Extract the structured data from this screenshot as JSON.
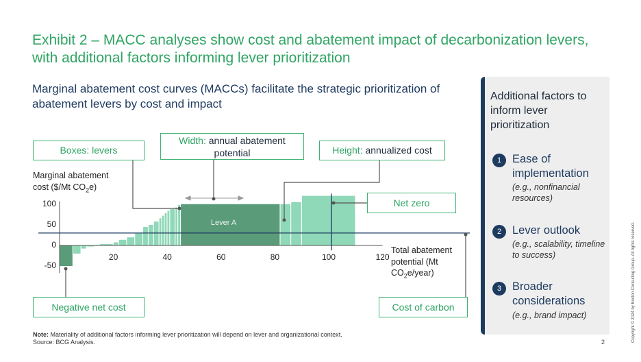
{
  "title": "Exhibit 2 – MACC analyses show cost and abatement impact of decarbonization levers, with additional factors informing lever prioritization",
  "subtitle": "Marginal abatement cost curves (MACCs)  facilitate the strategic prioritization of abatement levers by cost and impact",
  "callouts": {
    "boxes": "Boxes: levers",
    "width_key": "Width:",
    "width_rest": " annual abatement potential",
    "height_key": "Height:",
    "height_rest": " annualized cost",
    "net_zero": "Net zero",
    "negative_net_cost": "Negative net cost",
    "cost_of_carbon": "Cost of carbon"
  },
  "chart_data": {
    "type": "bar",
    "ylabel_line1": "Marginal abatement",
    "ylabel_line2_prefix": "cost ($/Mt CO",
    "ylabel_line2_sub": "2",
    "ylabel_line2_suffix": "e)",
    "xlabel_line1": "Total abatement",
    "xlabel_line2": "potential (Mt",
    "xlabel_line3_prefix": "CO",
    "xlabel_line3_sub": "2",
    "xlabel_line3_suffix": "e/year)",
    "x_ticks": [
      "20",
      "40",
      "60",
      "80",
      "100",
      "120"
    ],
    "y_ticks": [
      "100",
      "50",
      "0",
      "-50"
    ],
    "xlim": [
      0,
      120
    ],
    "ylim": [
      -50,
      100
    ],
    "cost_of_carbon": 30,
    "net_zero_x": 101,
    "highlight_label": "Lever A",
    "levers": [
      {
        "start": 0,
        "width": 5,
        "cost": -50
      },
      {
        "start": 5,
        "width": 3,
        "cost": -20
      },
      {
        "start": 8,
        "width": 2,
        "cost": -8
      },
      {
        "start": 10,
        "width": 3,
        "cost": -3
      },
      {
        "start": 13,
        "width": 2,
        "cost": 2
      },
      {
        "start": 15,
        "width": 5,
        "cost": 4
      },
      {
        "start": 20,
        "width": 2,
        "cost": 8
      },
      {
        "start": 22,
        "width": 3,
        "cost": 14
      },
      {
        "start": 25,
        "width": 3,
        "cost": 20
      },
      {
        "start": 28,
        "width": 3,
        "cost": 30
      },
      {
        "start": 31,
        "width": 2,
        "cost": 45
      },
      {
        "start": 33,
        "width": 2,
        "cost": 50
      },
      {
        "start": 35,
        "width": 2,
        "cost": 58
      },
      {
        "start": 37,
        "width": 1,
        "cost": 66
      },
      {
        "start": 38,
        "width": 1,
        "cost": 72
      },
      {
        "start": 39,
        "width": 1,
        "cost": 78
      },
      {
        "start": 40,
        "width": 1,
        "cost": 84
      },
      {
        "start": 41,
        "width": 2,
        "cost": 88
      },
      {
        "start": 43,
        "width": 1,
        "cost": 92
      },
      {
        "start": 44,
        "width": 1,
        "cost": 98
      },
      {
        "start": 45,
        "width": 37,
        "cost": 100,
        "highlight": true
      },
      {
        "start": 82,
        "width": 4,
        "cost": 100
      },
      {
        "start": 86,
        "width": 4,
        "cost": 105
      },
      {
        "start": 90,
        "width": 20,
        "cost": 120
      }
    ]
  },
  "panel": {
    "title": "Additional factors to inform lever prioritization",
    "factors": [
      {
        "num": "1",
        "head": "Ease of implementation",
        "sub": "(e.g., nonfinancial resources)"
      },
      {
        "num": "2",
        "head": "Lever outlook",
        "sub": "(e.g., scalability, timeline to success)"
      },
      {
        "num": "3",
        "head": "Broader considerations",
        "sub": "(e.g., brand impact)"
      }
    ]
  },
  "footer": {
    "note_label": "Note:",
    "note_text": " Materiality of additional factors informing lever prioritization will depend on lever and organizational context.",
    "source": "Source: BCG Analysis.",
    "page": "2",
    "copyright": "Copyright © 2024 by Boston Consulting Group. All rights reserved."
  },
  "colors": {
    "title_green": "#2fa463",
    "navy": "#1d3a5f",
    "lever_light": "#8fd8b8",
    "lever_dark": "#5a9c7a",
    "callout_border": "#3cb371"
  }
}
